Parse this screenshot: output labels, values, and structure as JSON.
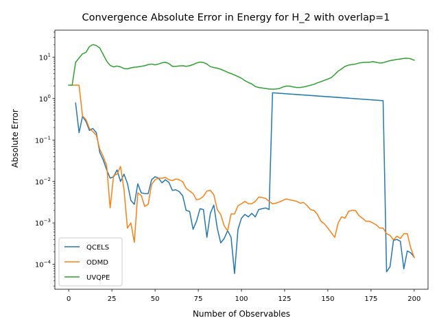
{
  "chart_data": {
    "type": "line",
    "title": "Convergence Absolute Error in Energy for H_2 with overlap=1",
    "xlabel": "Number of Observables",
    "ylabel": "Absolute Error",
    "xlim": [
      -8,
      208
    ],
    "ylim_log10": [
      -4.6,
      1.65
    ],
    "yscale": "log",
    "grid": false,
    "legend_position": "lower left",
    "xticks": [
      0,
      25,
      50,
      75,
      100,
      125,
      150,
      175,
      200
    ],
    "yticks": [
      {
        "exp": -4,
        "label": "10^-4"
      },
      {
        "exp": -3,
        "label": "10^-3"
      },
      {
        "exp": -2,
        "label": "10^-2"
      },
      {
        "exp": -1,
        "label": "10^-1"
      },
      {
        "exp": 0,
        "label": "10^0"
      },
      {
        "exp": 1,
        "label": "10^1"
      }
    ],
    "series": [
      {
        "name": "QCELS",
        "color": "#1f77b4",
        "points": [
          [
            4,
            0.78
          ],
          [
            6,
            0.15
          ],
          [
            8,
            0.37
          ],
          [
            10,
            0.28
          ],
          [
            12,
            0.17
          ],
          [
            14,
            0.19
          ],
          [
            16,
            0.15
          ],
          [
            18,
            0.05
          ],
          [
            20,
            0.033
          ],
          [
            22,
            0.019
          ],
          [
            24,
            0.012
          ],
          [
            26,
            0.013
          ],
          [
            28,
            0.019
          ],
          [
            30,
            0.01
          ],
          [
            32,
            0.015
          ],
          [
            34,
            0.009
          ],
          [
            36,
            0.0035
          ],
          [
            38,
            0.0028
          ],
          [
            40,
            0.0088
          ],
          [
            42,
            0.0053
          ],
          [
            44,
            0.0051
          ],
          [
            46,
            0.0051
          ],
          [
            48,
            0.011
          ],
          [
            50,
            0.013
          ],
          [
            52,
            0.012
          ],
          [
            54,
            0.0093
          ],
          [
            56,
            0.011
          ],
          [
            58,
            0.0095
          ],
          [
            60,
            0.0061
          ],
          [
            62,
            0.0063
          ],
          [
            64,
            0.0057
          ],
          [
            66,
            0.0045
          ],
          [
            68,
            0.002
          ],
          [
            70,
            0.0019
          ],
          [
            72,
            0.0007
          ],
          [
            74,
            0.0011
          ],
          [
            76,
            0.0022
          ],
          [
            78,
            0.0021
          ],
          [
            80,
            0.00045
          ],
          [
            82,
            0.0017
          ],
          [
            84,
            0.0027
          ],
          [
            86,
            0.00075
          ],
          [
            88,
            0.00033
          ],
          [
            90,
            0.00042
          ],
          [
            92,
            0.00065
          ],
          [
            94,
            0.00045
          ],
          [
            96,
            6e-05
          ],
          [
            98,
            0.0007
          ],
          [
            100,
            0.0013
          ],
          [
            102,
            0.0016
          ],
          [
            104,
            0.0014
          ],
          [
            106,
            0.0017
          ],
          [
            108,
            0.0014
          ],
          [
            110,
            0.0021
          ],
          [
            112,
            0.0022
          ],
          [
            114,
            0.0023
          ],
          [
            116,
            0.0021
          ],
          [
            118,
            1.38
          ],
          [
            182,
            0.89
          ],
          [
            184,
            6.6e-05
          ],
          [
            186,
            8.8e-05
          ],
          [
            188,
            0.00038
          ],
          [
            190,
            0.0004
          ],
          [
            192,
            0.00036
          ],
          [
            194,
            7.8e-05
          ],
          [
            196,
            0.00021
          ],
          [
            198,
            0.00019
          ],
          [
            200,
            0.00015
          ]
        ]
      },
      {
        "name": "ODMD",
        "color": "#ff7f0e",
        "points": [
          [
            2,
            2.1
          ],
          [
            4,
            2.1
          ],
          [
            6,
            2.1
          ],
          [
            8,
            0.38
          ],
          [
            10,
            0.31
          ],
          [
            12,
            0.19
          ],
          [
            14,
            0.16
          ],
          [
            16,
            0.13
          ],
          [
            18,
            0.06
          ],
          [
            20,
            0.04
          ],
          [
            22,
            0.024
          ],
          [
            24,
            0.0023
          ],
          [
            26,
            0.014
          ],
          [
            28,
            0.015
          ],
          [
            30,
            0.023
          ],
          [
            32,
            0.0065
          ],
          [
            34,
            0.00075
          ],
          [
            36,
            0.001
          ],
          [
            38,
            0.00034
          ],
          [
            40,
            0.0053
          ],
          [
            42,
            0.0046
          ],
          [
            44,
            0.0025
          ],
          [
            46,
            0.0028
          ],
          [
            48,
            0.0085
          ],
          [
            50,
            0.011
          ],
          [
            52,
            0.012
          ],
          [
            54,
            0.012
          ],
          [
            56,
            0.0125
          ],
          [
            58,
            0.011
          ],
          [
            60,
            0.0105
          ],
          [
            62,
            0.0115
          ],
          [
            64,
            0.011
          ],
          [
            66,
            0.0098
          ],
          [
            68,
            0.0068
          ],
          [
            70,
            0.0059
          ],
          [
            72,
            0.0051
          ],
          [
            74,
            0.0036
          ],
          [
            76,
            0.0038
          ],
          [
            78,
            0.0044
          ],
          [
            80,
            0.0059
          ],
          [
            82,
            0.0061
          ],
          [
            84,
            0.0048
          ],
          [
            86,
            0.0021
          ],
          [
            88,
            0.0016
          ],
          [
            90,
            0.00085
          ],
          [
            92,
            0.00065
          ],
          [
            94,
            0.00165
          ],
          [
            96,
            0.00165
          ],
          [
            98,
            0.0026
          ],
          [
            100,
            0.0029
          ],
          [
            102,
            0.0033
          ],
          [
            104,
            0.0029
          ],
          [
            106,
            0.0029
          ],
          [
            108,
            0.0033
          ],
          [
            110,
            0.0042
          ],
          [
            112,
            0.0041
          ],
          [
            114,
            0.0039
          ],
          [
            116,
            0.0033
          ],
          [
            118,
            0.0029
          ],
          [
            120,
            0.003
          ],
          [
            122,
            0.0032
          ],
          [
            124,
            0.0035
          ],
          [
            126,
            0.0038
          ],
          [
            128,
            0.0036
          ],
          [
            130,
            0.0035
          ],
          [
            132,
            0.0033
          ],
          [
            134,
            0.003
          ],
          [
            136,
            0.0031
          ],
          [
            138,
            0.0026
          ],
          [
            140,
            0.0021
          ],
          [
            142,
            0.002
          ],
          [
            144,
            0.0016
          ],
          [
            146,
            0.0011
          ],
          [
            148,
            0.00095
          ],
          [
            150,
            0.00075
          ],
          [
            152,
            0.00058
          ],
          [
            154,
            0.00045
          ],
          [
            156,
            0.001
          ],
          [
            158,
            0.0014
          ],
          [
            160,
            0.0013
          ],
          [
            162,
            0.0019
          ],
          [
            164,
            0.002
          ],
          [
            166,
            0.002
          ],
          [
            168,
            0.0015
          ],
          [
            170,
            0.0013
          ],
          [
            172,
            0.0011
          ],
          [
            174,
            0.0011
          ],
          [
            176,
            0.001
          ],
          [
            178,
            0.0009
          ],
          [
            180,
            0.00075
          ],
          [
            182,
            0.00075
          ],
          [
            184,
            0.00055
          ],
          [
            186,
            0.0005
          ],
          [
            188,
            0.00039
          ],
          [
            190,
            0.00048
          ],
          [
            192,
            0.00042
          ],
          [
            194,
            0.00055
          ],
          [
            196,
            0.00055
          ],
          [
            198,
            0.00025
          ],
          [
            200,
            0.000145
          ]
        ]
      },
      {
        "name": "UVQPE",
        "color": "#2ca02c",
        "points": [
          [
            0,
            2.1
          ],
          [
            2,
            2.1
          ],
          [
            4,
            7.5
          ],
          [
            6,
            9.5
          ],
          [
            8,
            12.0
          ],
          [
            10,
            13.0
          ],
          [
            12,
            18.0
          ],
          [
            14,
            20.0
          ],
          [
            16,
            19.0
          ],
          [
            18,
            16.5
          ],
          [
            20,
            11.5
          ],
          [
            22,
            8.0
          ],
          [
            24,
            6.3
          ],
          [
            26,
            5.8
          ],
          [
            28,
            6.1
          ],
          [
            30,
            5.8
          ],
          [
            32,
            5.3
          ],
          [
            34,
            5.2
          ],
          [
            36,
            5.5
          ],
          [
            38,
            5.7
          ],
          [
            40,
            5.8
          ],
          [
            42,
            6.0
          ],
          [
            44,
            6.2
          ],
          [
            46,
            6.6
          ],
          [
            48,
            6.8
          ],
          [
            50,
            6.5
          ],
          [
            52,
            6.8
          ],
          [
            54,
            7.3
          ],
          [
            56,
            7.5
          ],
          [
            58,
            7.0
          ],
          [
            60,
            6.0
          ],
          [
            62,
            6.0
          ],
          [
            64,
            6.1
          ],
          [
            66,
            6.2
          ],
          [
            68,
            6.0
          ],
          [
            70,
            6.2
          ],
          [
            72,
            6.6
          ],
          [
            74,
            7.2
          ],
          [
            76,
            7.6
          ],
          [
            78,
            7.4
          ],
          [
            80,
            6.8
          ],
          [
            82,
            5.9
          ],
          [
            84,
            5.6
          ],
          [
            86,
            5.4
          ],
          [
            88,
            5.1
          ],
          [
            90,
            4.7
          ],
          [
            92,
            4.3
          ],
          [
            94,
            4.0
          ],
          [
            96,
            3.7
          ],
          [
            98,
            3.4
          ],
          [
            100,
            3.1
          ],
          [
            102,
            2.7
          ],
          [
            104,
            2.45
          ],
          [
            106,
            2.25
          ],
          [
            108,
            1.95
          ],
          [
            110,
            1.85
          ],
          [
            112,
            1.8
          ],
          [
            114,
            1.75
          ],
          [
            116,
            1.7
          ],
          [
            118,
            1.68
          ],
          [
            120,
            1.7
          ],
          [
            122,
            1.75
          ],
          [
            124,
            1.9
          ],
          [
            126,
            2.0
          ],
          [
            128,
            2.0
          ],
          [
            130,
            1.9
          ],
          [
            132,
            1.85
          ],
          [
            134,
            1.85
          ],
          [
            136,
            1.9
          ],
          [
            138,
            2.0
          ],
          [
            140,
            2.1
          ],
          [
            142,
            2.2
          ],
          [
            144,
            2.4
          ],
          [
            146,
            2.55
          ],
          [
            148,
            2.75
          ],
          [
            150,
            2.95
          ],
          [
            152,
            3.2
          ],
          [
            154,
            3.8
          ],
          [
            156,
            4.6
          ],
          [
            158,
            5.2
          ],
          [
            160,
            6.0
          ],
          [
            162,
            6.4
          ],
          [
            164,
            6.6
          ],
          [
            166,
            6.8
          ],
          [
            168,
            7.2
          ],
          [
            170,
            7.4
          ],
          [
            172,
            7.5
          ],
          [
            174,
            7.5
          ],
          [
            176,
            7.8
          ],
          [
            178,
            7.5
          ],
          [
            180,
            7.2
          ],
          [
            182,
            7.3
          ],
          [
            184,
            7.8
          ],
          [
            186,
            8.2
          ],
          [
            188,
            8.5
          ],
          [
            190,
            8.8
          ],
          [
            192,
            9.0
          ],
          [
            194,
            9.3
          ],
          [
            196,
            9.4
          ],
          [
            198,
            9.1
          ],
          [
            200,
            8.4
          ]
        ]
      }
    ]
  }
}
